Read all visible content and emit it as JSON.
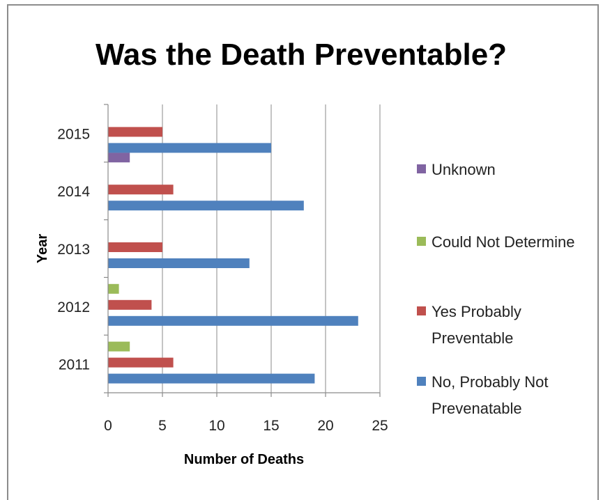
{
  "chart_data": {
    "type": "bar",
    "orientation": "horizontal",
    "title": "Was the Death Preventable?",
    "xlabel": "Number of Deaths",
    "ylabel": "Year",
    "categories": [
      "2011",
      "2012",
      "2013",
      "2014",
      "2015"
    ],
    "xlim": [
      0,
      25
    ],
    "xticks": [
      0,
      5,
      10,
      15,
      20,
      25
    ],
    "grid": "vertical",
    "legend_position": "right",
    "series": [
      {
        "name": "No, Probably Not Prevenatable",
        "legend_lines": [
          "No, Probably Not",
          "Prevenatable"
        ],
        "color": "#4f81bd",
        "values": [
          19,
          23,
          13,
          18,
          15
        ]
      },
      {
        "name": "Yes Probably Preventable",
        "legend_lines": [
          "Yes Probably",
          "Preventable"
        ],
        "color": "#c0504d",
        "values": [
          6,
          4,
          5,
          6,
          5
        ]
      },
      {
        "name": "Could Not Determine",
        "legend_lines": [
          "Could Not Determine"
        ],
        "color": "#9bbb59",
        "values": [
          2,
          1,
          0,
          0,
          0
        ]
      },
      {
        "name": "Unknown",
        "legend_lines": [
          "Unknown"
        ],
        "color": "#8064a2",
        "values": [
          0,
          0,
          0,
          2,
          0
        ]
      }
    ]
  }
}
